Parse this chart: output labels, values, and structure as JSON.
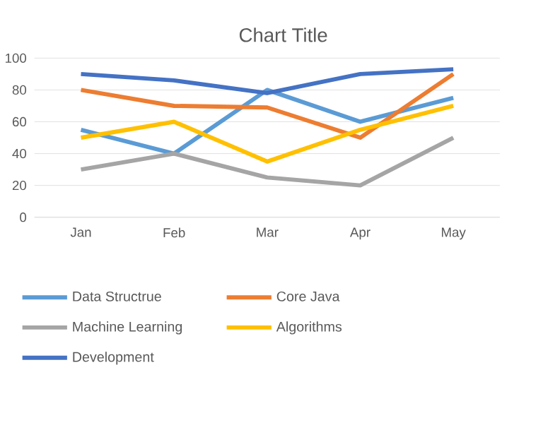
{
  "chart_data": {
    "type": "line",
    "title": "Chart Title",
    "categories": [
      "Jan",
      "Feb",
      "Mar",
      "Apr",
      "May"
    ],
    "series": [
      {
        "name": "Data Structrue",
        "color": "#5b9bd5",
        "values": [
          55,
          40,
          80,
          60,
          75
        ]
      },
      {
        "name": "Core Java",
        "color": "#ed7d31",
        "values": [
          80,
          70,
          69,
          50,
          90
        ]
      },
      {
        "name": "Machine Learning",
        "color": "#a5a5a5",
        "values": [
          30,
          40,
          25,
          20,
          50
        ]
      },
      {
        "name": "Algorithms",
        "color": "#ffc000",
        "values": [
          50,
          60,
          35,
          55,
          70
        ]
      },
      {
        "name": "Development",
        "color": "#4472c4",
        "values": [
          90,
          86,
          78,
          90,
          93
        ]
      }
    ],
    "ylim": [
      0,
      100
    ],
    "yticks": [
      0,
      20,
      40,
      60,
      80,
      100
    ],
    "grid": "y",
    "legend": "bottom",
    "marker": "none",
    "line_style": "solid"
  }
}
